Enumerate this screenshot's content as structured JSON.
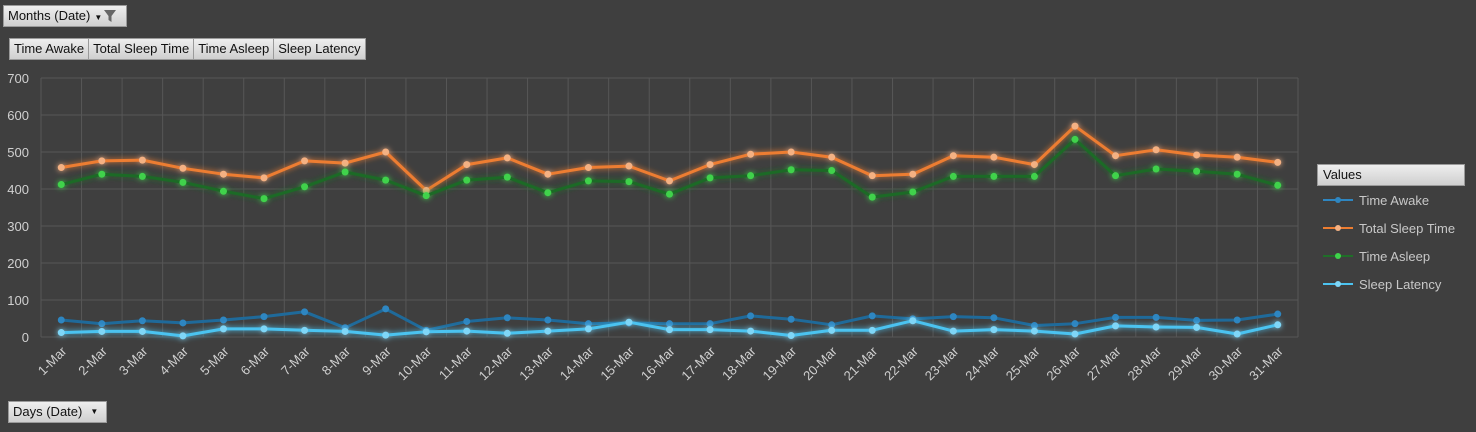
{
  "filters": {
    "months_label": "Months (Date)",
    "days_label": "Days (Date)",
    "dropdown_icon": "dropdown-arrow-icon",
    "filter_icon": "funnel-icon"
  },
  "series_buttons": [
    "Time Awake",
    "Total Sleep Time",
    "Time Asleep",
    "Sleep Latency"
  ],
  "legend": {
    "title": "Values",
    "items": [
      {
        "label": "Time Awake",
        "color": "#2e86c1"
      },
      {
        "label": "Total Sleep Time",
        "color": "#ed7d31"
      },
      {
        "label": "Time Asleep",
        "color": "#2aa834"
      },
      {
        "label": "Sleep Latency",
        "color": "#4cc3f0"
      }
    ]
  },
  "chart_data": {
    "type": "line",
    "title": "",
    "xlabel": "",
    "ylabel": "",
    "ylim": [
      0,
      700
    ],
    "yticks": [
      0,
      100,
      200,
      300,
      400,
      500,
      600,
      700
    ],
    "grid": true,
    "legend_position": "right",
    "categories": [
      "1-Mar",
      "2-Mar",
      "3-Mar",
      "4-Mar",
      "5-Mar",
      "6-Mar",
      "7-Mar",
      "8-Mar",
      "9-Mar",
      "10-Mar",
      "11-Mar",
      "12-Mar",
      "13-Mar",
      "14-Mar",
      "15-Mar",
      "16-Mar",
      "17-Mar",
      "18-Mar",
      "19-Mar",
      "20-Mar",
      "21-Mar",
      "22-Mar",
      "23-Mar",
      "24-Mar",
      "25-Mar",
      "26-Mar",
      "27-Mar",
      "28-Mar",
      "29-Mar",
      "30-Mar",
      "31-Mar"
    ],
    "series": [
      {
        "name": "Time Awake",
        "color": "#2e86c1",
        "values": [
          46,
          36,
          44,
          38,
          46,
          55,
          68,
          25,
          76,
          18,
          42,
          52,
          46,
          36,
          38,
          36,
          36,
          57,
          48,
          33,
          57,
          49,
          55,
          52,
          31,
          36,
          53,
          53,
          45,
          46,
          62
        ]
      },
      {
        "name": "Total Sleep Time",
        "color": "#ed7d31",
        "values": [
          458,
          476,
          478,
          456,
          440,
          430,
          476,
          470,
          500,
          396,
          466,
          484,
          440,
          458,
          462,
          422,
          466,
          494,
          500,
          486,
          436,
          440,
          490,
          486,
          466,
          570,
          490,
          506,
          492,
          486,
          472
        ]
      },
      {
        "name": "Time Asleep",
        "color": "#2aa834",
        "values": [
          412,
          440,
          434,
          418,
          394,
          374,
          406,
          446,
          424,
          382,
          424,
          432,
          390,
          422,
          420,
          386,
          430,
          436,
          452,
          450,
          378,
          392,
          434,
          434,
          434,
          534,
          436,
          454,
          448,
          440,
          410
        ]
      },
      {
        "name": "Sleep Latency",
        "color": "#4cc3f0",
        "values": [
          12,
          15,
          15,
          3,
          22,
          22,
          18,
          15,
          5,
          14,
          16,
          10,
          16,
          22,
          40,
          20,
          20,
          16,
          4,
          18,
          18,
          44,
          16,
          20,
          16,
          8,
          30,
          27,
          26,
          8,
          33
        ]
      }
    ]
  }
}
